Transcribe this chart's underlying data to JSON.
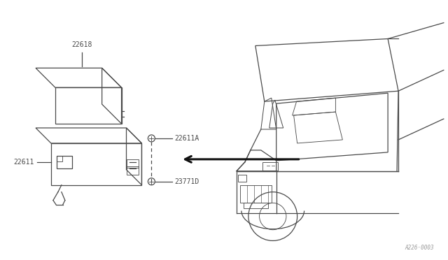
{
  "bg_color": "#ffffff",
  "line_color": "#4a4a4a",
  "text_color": "#4a4a4a",
  "diagram_code": "A226·0003",
  "figsize": [
    6.4,
    3.72
  ],
  "dpi": 100
}
